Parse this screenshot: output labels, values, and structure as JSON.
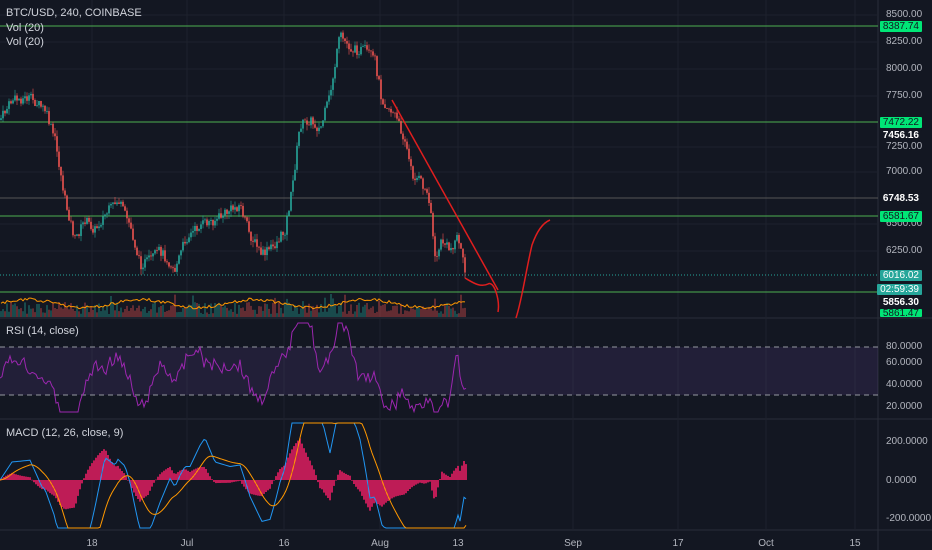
{
  "header": {
    "symbol_label": "BTC/USD, 240, COINBASE",
    "vol1_label": "Vol (20)",
    "vol2_label": "Vol (20)"
  },
  "rsi": {
    "label": "RSI (14, close)",
    "axis": [
      "80.0000",
      "60.0000",
      "40.0000",
      "20.0000"
    ]
  },
  "macd": {
    "label": "MACD (12, 26, close, 9)",
    "axis": [
      "200.0000",
      "0.0000",
      "-200.0000"
    ]
  },
  "price_axis": [
    "8500.00",
    "8250.00",
    "8000.00",
    "7750.00",
    "7250.00",
    "7000.00",
    "6500.00",
    "6250.00"
  ],
  "price_tags": {
    "tag_8387": "8387.74",
    "tag_7472": "7472.22",
    "tag_7456": "7456.16",
    "tag_6748": "6748.53",
    "tag_6581": "6581.67",
    "tag_6016": "6016.02",
    "tag_countdown": "02:59:39",
    "tag_5856": "5856.30",
    "tag_5861": "5861.47"
  },
  "time_axis": [
    "18",
    "Jul",
    "16",
    "Aug",
    "13",
    "Sep",
    "17",
    "Oct",
    "15"
  ],
  "colors": {
    "background": "#131722",
    "up": "#26a69a",
    "down": "#ef5350",
    "support_line": "#4caf50",
    "tag_green": "#00e676",
    "rsi_line": "#9c27b0",
    "macd_line": "#2196f3",
    "signal_line": "#ff9800",
    "histogram": "#e91e63",
    "drawing": "#e01e1e"
  }
}
